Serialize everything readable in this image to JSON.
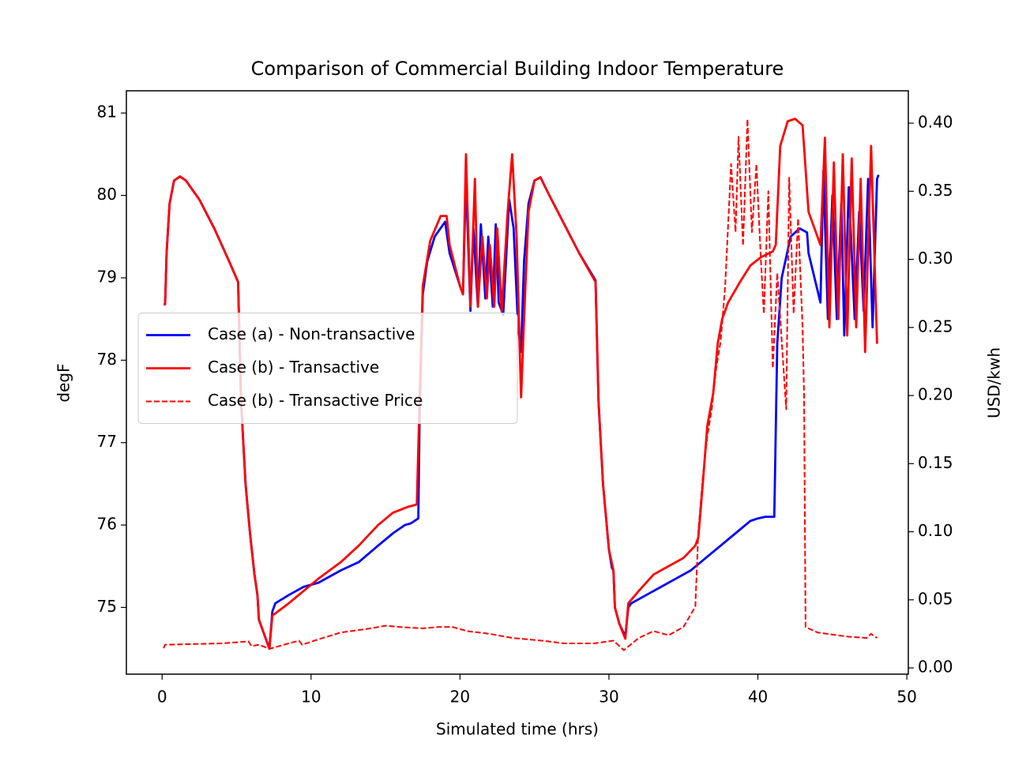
{
  "chart_data": {
    "type": "line",
    "title": "Comparison of Commercial Building Indoor Temperature",
    "x_label": "Simulated time (hrs)",
    "y_label": "degF",
    "y2_label": "USD/kwh",
    "xlim": [
      -2.4,
      50.1
    ],
    "xticks": [
      0,
      10,
      20,
      30,
      40,
      50
    ],
    "ylim": [
      74.19,
      81.27
    ],
    "yticks": [
      75,
      76,
      77,
      78,
      79,
      80,
      81
    ],
    "y2lim": [
      -0.0046,
      0.4238
    ],
    "y2ticks": [
      {
        "value": 0,
        "label": "0.00"
      },
      {
        "value": 0.05,
        "label": "0.05"
      },
      {
        "value": 0.1,
        "label": "0.10"
      },
      {
        "value": 0.15,
        "label": "0.15"
      },
      {
        "value": 0.2,
        "label": "0.20"
      },
      {
        "value": 0.25,
        "label": "0.25"
      },
      {
        "value": 0.3,
        "label": "0.30"
      },
      {
        "value": 0.35,
        "label": "0.35"
      },
      {
        "value": 0.4,
        "label": "0.40"
      }
    ],
    "legend": "center left",
    "series": [
      {
        "name": "Case (a) - Non-transactive",
        "color": "#0000ff",
        "linestyle": "solid",
        "x": [
          0.1,
          0.2,
          0.3,
          0.5,
          0.8,
          1.2,
          1.6,
          2.5,
          3.5,
          4.5,
          5.1,
          5.3,
          5.6,
          5.9,
          6.2,
          6.4,
          6.5,
          6.8,
          7.1,
          7.2,
          7.4,
          7.6,
          8.5,
          9.5,
          10.5,
          12,
          13.2,
          14.5,
          15.5,
          16.3,
          16.7,
          17.2,
          17.3,
          17.5,
          17.8,
          18.3,
          19,
          19.3,
          20,
          20.2,
          20.4,
          20.7,
          20.9,
          21.2,
          21.4,
          21.7,
          21.9,
          22.2,
          22.4,
          22.6,
          22.9,
          23.3,
          23.6,
          23.9,
          24.1,
          24.3,
          24.6,
          25,
          25.4,
          26,
          27,
          28,
          29.1,
          29.3,
          29.6,
          30,
          30.2,
          30.3,
          30.4,
          30.7,
          31.1,
          31.3,
          31.5,
          32.5,
          33.5,
          34.5,
          35.5,
          36.5,
          37.5,
          38.5,
          39.5,
          40,
          40.5,
          41.1,
          41.3,
          41.6,
          42.2,
          42.8,
          43.3,
          43.4,
          44.2,
          44.4,
          44.7,
          45,
          45.3,
          45.6,
          45.8,
          46.1,
          46.5,
          46.8,
          47.1,
          47.4,
          47.7,
          48,
          48.1
        ],
        "values": [
          78.68,
          78.68,
          79.3,
          79.9,
          80.18,
          80.23,
          80.18,
          79.95,
          79.6,
          79.2,
          78.95,
          77.5,
          76.5,
          75.9,
          75.4,
          75.15,
          74.85,
          74.7,
          74.55,
          74.5,
          74.95,
          75.05,
          75.15,
          75.25,
          75.3,
          75.45,
          75.55,
          75.75,
          75.9,
          76.0,
          76.02,
          76.08,
          77.5,
          78.8,
          79.2,
          79.5,
          79.68,
          79.3,
          78.9,
          78.8,
          80.2,
          78.6,
          79.6,
          78.65,
          79.65,
          78.75,
          79.5,
          78.65,
          79.65,
          78.7,
          78.55,
          79.95,
          79.6,
          78.4,
          78.1,
          79.2,
          79.9,
          80.18,
          80.22,
          80.0,
          79.65,
          79.3,
          78.97,
          77.5,
          76.5,
          75.7,
          75.48,
          75.45,
          75.0,
          74.8,
          74.65,
          75.0,
          75.05,
          75.15,
          75.25,
          75.35,
          75.45,
          75.6,
          75.75,
          75.9,
          76.05,
          76.08,
          76.1,
          76.1,
          78.2,
          79.0,
          79.5,
          79.6,
          79.55,
          79.3,
          78.7,
          80.3,
          78.5,
          80.0,
          78.5,
          79.9,
          78.3,
          80.1,
          78.5,
          79.8,
          78.6,
          80.2,
          78.4,
          80.2,
          80.25
        ]
      },
      {
        "name": "Case (b) - Transactive",
        "color": "#ff0000",
        "linestyle": "solid",
        "x": [
          0.1,
          0.2,
          0.3,
          0.5,
          0.8,
          1.2,
          1.6,
          2.5,
          3.5,
          4.5,
          5.1,
          5.3,
          5.6,
          5.9,
          6.2,
          6.4,
          6.5,
          6.8,
          7.1,
          7.2,
          7.4,
          8.5,
          9.5,
          10.5,
          12,
          13.2,
          14.5,
          15.5,
          16.5,
          17.1,
          17.3,
          17.5,
          18,
          18.7,
          19.1,
          19.3,
          20,
          20.2,
          20.4,
          20.7,
          21,
          21.2,
          21.5,
          21.8,
          22,
          22.3,
          22.5,
          22.8,
          23.2,
          23.5,
          23.8,
          24.1,
          24.3,
          24.6,
          25,
          25.4,
          26,
          27,
          28,
          29.1,
          29.3,
          29.6,
          30,
          30.3,
          30.4,
          30.7,
          31.1,
          31.3,
          32,
          33,
          34,
          35,
          35.8,
          36,
          36.3,
          36.6,
          37,
          37.3,
          37.6,
          38,
          38.8,
          39.5,
          40.2,
          41,
          41.2,
          41.5,
          42,
          42.5,
          43,
          43.4,
          44.2,
          44.5,
          44.8,
          45.1,
          45.4,
          45.7,
          46,
          46.3,
          46.6,
          46.9,
          47.2,
          47.6,
          48
        ],
        "values": [
          78.68,
          78.68,
          79.3,
          79.9,
          80.18,
          80.23,
          80.18,
          79.95,
          79.6,
          79.2,
          78.95,
          77.5,
          76.5,
          75.9,
          75.4,
          75.15,
          74.85,
          74.7,
          74.55,
          74.5,
          74.9,
          75.05,
          75.2,
          75.35,
          75.55,
          75.75,
          76.0,
          76.15,
          76.22,
          76.25,
          77.6,
          78.9,
          79.45,
          79.75,
          79.75,
          79.4,
          78.9,
          78.8,
          80.5,
          78.65,
          80.2,
          78.65,
          79.5,
          78.75,
          79.4,
          78.65,
          79.6,
          78.6,
          79.8,
          80.5,
          79.5,
          77.55,
          78.5,
          79.8,
          80.18,
          80.22,
          80.0,
          79.65,
          79.3,
          78.95,
          77.5,
          76.5,
          75.7,
          75.45,
          75.0,
          74.8,
          74.62,
          75.05,
          75.2,
          75.4,
          75.5,
          75.6,
          75.75,
          75.85,
          76.5,
          77.2,
          77.6,
          78.2,
          78.5,
          78.7,
          78.95,
          79.15,
          79.25,
          79.32,
          79.4,
          80.6,
          80.9,
          80.93,
          80.85,
          79.8,
          79.4,
          80.7,
          78.4,
          80.4,
          78.5,
          80.5,
          78.3,
          80.45,
          78.4,
          80.2,
          78.1,
          80.6,
          78.2
        ]
      },
      {
        "name": "Case (b) - Transactive Price",
        "color": "#ff0000",
        "linestyle": "dashed",
        "axis": "y2",
        "x": [
          0.1,
          0.2,
          2,
          4,
          5.8,
          6,
          6.5,
          7.2,
          8.5,
          9.2,
          9.4,
          10.5,
          12,
          14,
          15,
          16,
          17.5,
          18.5,
          19.5,
          20.5,
          22,
          23.5,
          25.5,
          27,
          29,
          30.3,
          31,
          32,
          33,
          34,
          35,
          35.8,
          36,
          36.3,
          36.6,
          36.9,
          37.2,
          37.5,
          37.8,
          38.2,
          38.5,
          38.7,
          39,
          39.3,
          39.6,
          39.9,
          40.2,
          40.4,
          40.7,
          41,
          41.3,
          41.6,
          41.9,
          42.1,
          42.4,
          42.7,
          43,
          43.1,
          43.2,
          44,
          46,
          47.3,
          47.6,
          48
        ],
        "values": [
          0.0145,
          0.017,
          0.0175,
          0.018,
          0.0195,
          0.016,
          0.017,
          0.014,
          0.018,
          0.02,
          0.017,
          0.021,
          0.026,
          0.029,
          0.031,
          0.03,
          0.029,
          0.03,
          0.03,
          0.027,
          0.025,
          0.022,
          0.02,
          0.018,
          0.018,
          0.02,
          0.013,
          0.022,
          0.027,
          0.024,
          0.03,
          0.045,
          0.1,
          0.14,
          0.17,
          0.19,
          0.22,
          0.24,
          0.28,
          0.37,
          0.32,
          0.39,
          0.31,
          0.403,
          0.32,
          0.37,
          0.3,
          0.26,
          0.35,
          0.22,
          0.29,
          0.24,
          0.19,
          0.36,
          0.26,
          0.33,
          0.25,
          0.2,
          0.03,
          0.026,
          0.023,
          0.022,
          0.025,
          0.022
        ]
      }
    ]
  }
}
